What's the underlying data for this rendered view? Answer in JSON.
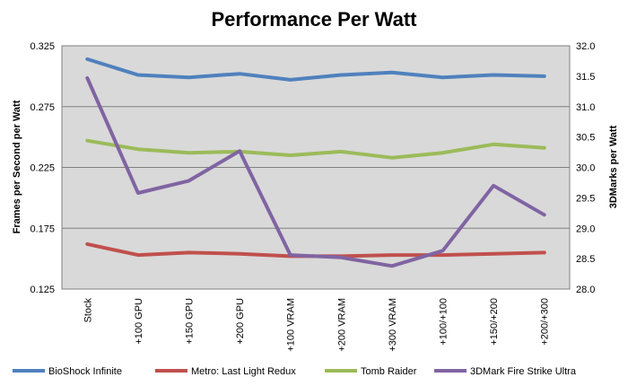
{
  "chart_data": {
    "type": "line",
    "title": "Performance Per Watt",
    "categories": [
      "Stock",
      "+100 GPU",
      "+150 GPU",
      "+200 GPU",
      "+100 VRAM",
      "+200 VRAM",
      "+300 VRAM",
      "+100/+100",
      "+150/+200",
      "+200/+300"
    ],
    "y_left": {
      "label": "Frames per Second  per Watt",
      "range": [
        0.125,
        0.325
      ],
      "ticks": [
        "0.125",
        "0.175",
        "0.225",
        "0.275",
        "0.325"
      ]
    },
    "y_right": {
      "label": "3DMarks  per Watt",
      "range": [
        28.0,
        32.0
      ],
      "ticks": [
        "28.0",
        "28.5",
        "29.0",
        "29.5",
        "30.0",
        "30.5",
        "31.0",
        "31.5",
        "32.0"
      ]
    },
    "grid": true,
    "legend_position": "bottom",
    "series": [
      {
        "name": "BioShock Infinite",
        "axis": "left",
        "color": "#4F81BD",
        "values": [
          0.314,
          0.301,
          0.299,
          0.302,
          0.297,
          0.301,
          0.303,
          0.299,
          0.301,
          0.3
        ]
      },
      {
        "name": "Metro: Last Light Redux",
        "axis": "left",
        "color": "#C0504D",
        "values": [
          0.162,
          0.153,
          0.155,
          0.154,
          0.152,
          0.152,
          0.153,
          0.153,
          0.154,
          0.155
        ]
      },
      {
        "name": "Tomb Raider",
        "axis": "left",
        "color": "#9BBB59",
        "values": [
          0.247,
          0.24,
          0.237,
          0.238,
          0.235,
          0.238,
          0.233,
          0.237,
          0.244,
          0.241
        ]
      },
      {
        "name": "3DMark Fire Strike Ultra",
        "axis": "right",
        "color": "#8064A2",
        "values": [
          31.47,
          29.58,
          29.78,
          30.27,
          28.56,
          28.52,
          28.38,
          28.63,
          29.7,
          29.22
        ]
      }
    ]
  }
}
